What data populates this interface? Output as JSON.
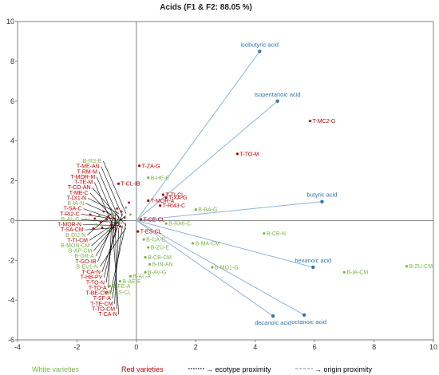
{
  "chart_data": {
    "type": "scatter",
    "title": "Acids (F1 & F2: 88.05 %)",
    "xlim": [
      -4,
      10
    ],
    "ylim": [
      -6,
      10
    ],
    "xticks": [
      -4,
      -2,
      0,
      2,
      4,
      6,
      8,
      10
    ],
    "yticks": [
      -6,
      -4,
      -2,
      0,
      2,
      4,
      6,
      8,
      10
    ],
    "grid": false,
    "colors": {
      "white": "#7ab648",
      "red": "#c00000",
      "variable": "#2e75b6",
      "leader": "#000000"
    },
    "variables": [
      {
        "name": "isobutyric acid",
        "x": 4.15,
        "y": 8.5
      },
      {
        "name": "isopentanoic acid",
        "x": 4.75,
        "y": 6.0
      },
      {
        "name": "butyric acid",
        "x": 6.25,
        "y": 0.95
      },
      {
        "name": "hexanoic acid",
        "x": 5.95,
        "y": -2.35
      },
      {
        "name": "octanoic acid",
        "x": 5.65,
        "y": -4.75
      },
      {
        "name": "decanoic acid",
        "x": 4.6,
        "y": -4.8
      }
    ],
    "labeled_points": [
      {
        "name": "T-MC2-G",
        "group": "red",
        "x": 5.85,
        "y": 5.0
      },
      {
        "name": "T-TO-M",
        "group": "red",
        "x": 3.4,
        "y": 3.35
      },
      {
        "name": "T-ZA-G",
        "group": "red",
        "x": 0.1,
        "y": 2.75
      },
      {
        "name": "T-CL-IB",
        "group": "red",
        "x": -0.6,
        "y": 1.85
      },
      {
        "name": "T-TI-CL",
        "group": "red",
        "x": 0.9,
        "y": 1.3
      },
      {
        "name": "T-XA-G",
        "group": "red",
        "x": 1.0,
        "y": 1.15
      },
      {
        "name": "T-RI43-C",
        "group": "red",
        "x": 0.8,
        "y": 0.75
      },
      {
        "name": "T-CE-CL",
        "group": "red",
        "x": 0.15,
        "y": 0.05
      },
      {
        "name": "T-ES-CL",
        "group": "red",
        "x": 0.05,
        "y": -0.55
      },
      {
        "name": "T-MOR-A",
        "group": "red",
        "x": 0.4,
        "y": 1.0
      },
      {
        "name": "B-ZU-CM",
        "group": "white",
        "x": 9.1,
        "y": -2.3
      },
      {
        "name": "B-IA-CM",
        "group": "white",
        "x": 7.0,
        "y": -2.6
      },
      {
        "name": "B-CB-N",
        "group": "white",
        "x": 4.3,
        "y": -0.65
      },
      {
        "name": "B-MO1-G",
        "group": "white",
        "x": 2.55,
        "y": -2.35
      },
      {
        "name": "B-MA-CM",
        "group": "white",
        "x": 1.9,
        "y": -1.15
      },
      {
        "name": "B-BA-G",
        "group": "white",
        "x": 2.0,
        "y": 0.55
      },
      {
        "name": "B-RA6-C",
        "group": "white",
        "x": 1.0,
        "y": -0.15
      },
      {
        "name": "B-HE-E",
        "group": "white",
        "x": 0.4,
        "y": 2.15
      },
      {
        "name": "B-ZU-E",
        "group": "white",
        "x": 0.4,
        "y": -1.35
      },
      {
        "name": "B-CB-CM",
        "group": "white",
        "x": 0.3,
        "y": -1.85
      },
      {
        "name": "B-CA-E",
        "group": "white",
        "x": 0.25,
        "y": -0.95
      },
      {
        "name": "B-IN-AN",
        "group": "white",
        "x": 0.45,
        "y": -2.2
      },
      {
        "name": "B-AV-G",
        "group": "white",
        "x": 0.3,
        "y": -2.6
      },
      {
        "name": "B-AL-A",
        "group": "white",
        "x": -0.2,
        "y": -2.8
      },
      {
        "name": "B-AE-E",
        "group": "white",
        "x": -0.55,
        "y": -3.05
      },
      {
        "name": "B-FE-A",
        "group": "white",
        "x": -0.9,
        "y": -3.3
      },
      {
        "name": "B-ES-CL",
        "group": "white",
        "x": -1.0,
        "y": -3.6
      }
    ],
    "left_labels": {
      "white": [
        "B-RS-E",
        "B-IA-N",
        "B-AL-C",
        "B-DI2-N",
        "B-MON-CM",
        "B-AP-CM",
        "B-GR-A",
        "B-EV1-N"
      ],
      "red": [
        "T-ME-AN",
        "T-RM-M",
        "T-MOR-M",
        "T-TE-M",
        "T-CO-AN",
        "T-ME-C",
        "T-DI1-N",
        "T-SA-C",
        "T-RI2-C",
        "T-MOR-N",
        "T-SA-CM",
        "T-TI-CM",
        "T-GO-IB",
        "T-CA-N",
        "T-HB-PV",
        "T-TO-N",
        "T-TO-A",
        "T-BE-CM",
        "T-SF-A",
        "T-TE-CM",
        "T-TO-CM",
        "T-CA-N"
      ]
    },
    "cluster": [
      [
        -0.35,
        0.65
      ],
      [
        -0.5,
        0.45
      ],
      [
        -0.65,
        0.6
      ],
      [
        -0.8,
        0.35
      ],
      [
        -0.95,
        0.2
      ],
      [
        -1.1,
        0.45
      ],
      [
        -1.25,
        0.25
      ],
      [
        -1.4,
        0.1
      ],
      [
        -1.55,
        0.3
      ],
      [
        -1.7,
        0.05
      ],
      [
        -1.2,
        -0.1
      ],
      [
        -0.85,
        -0.2
      ],
      [
        -0.6,
        -0.05
      ],
      [
        -0.4,
        0.15
      ],
      [
        -1.0,
        0.05
      ],
      [
        -1.35,
        -0.2
      ],
      [
        -0.75,
        0.1
      ],
      [
        -0.55,
        -0.3
      ],
      [
        -0.2,
        0.3
      ],
      [
        -0.25,
        0.9
      ],
      [
        -1.15,
        -0.35
      ],
      [
        -0.95,
        -0.5
      ],
      [
        -0.7,
        -0.45
      ],
      [
        -1.45,
        -0.4
      ]
    ],
    "legend": {
      "white": "White varieties",
      "red": "Red varieties",
      "ecotype": "→ ecotype proximity",
      "origin": "→ origin proximity"
    }
  }
}
